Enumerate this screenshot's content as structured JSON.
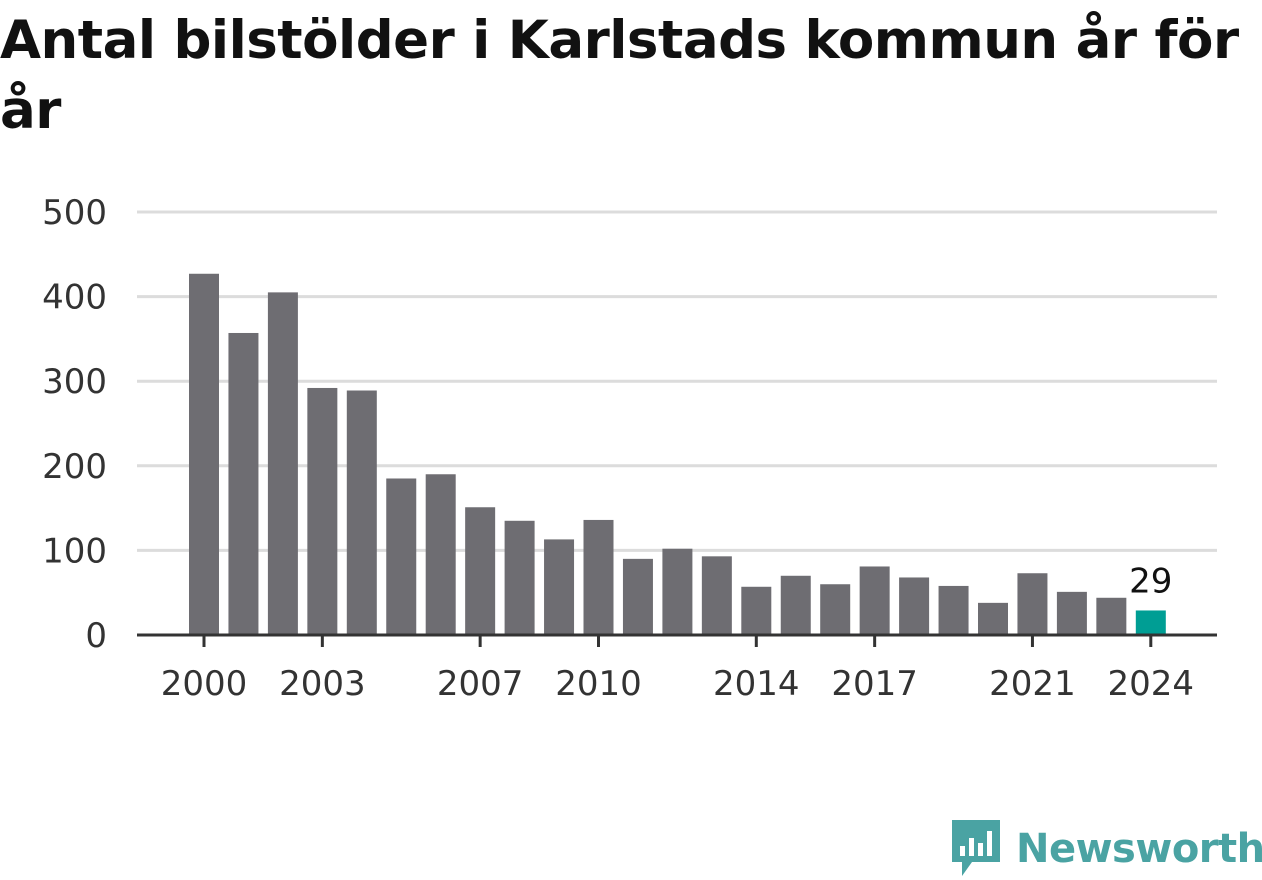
{
  "title": "Antal bilstölder i Karlstads kommun år för år",
  "brand": {
    "name": "Newsworthy",
    "logo_icon": "newsworthy-bar-chart-logo-icon",
    "color": "#4aa3a3"
  },
  "colors": {
    "bar": "#6e6d72",
    "highlight": "#009e94",
    "grid": "#dcdcdc",
    "axis": "#333333"
  },
  "chart_data": {
    "type": "bar",
    "categories": [
      "2000",
      "2001",
      "2002",
      "2003",
      "2004",
      "2005",
      "2006",
      "2007",
      "2008",
      "2009",
      "2010",
      "2011",
      "2012",
      "2013",
      "2014",
      "2015",
      "2016",
      "2017",
      "2018",
      "2019",
      "2020",
      "2021",
      "2022",
      "2023",
      "2024"
    ],
    "values": [
      427,
      357,
      405,
      292,
      289,
      185,
      190,
      151,
      135,
      113,
      136,
      90,
      102,
      93,
      57,
      70,
      60,
      81,
      68,
      58,
      38,
      73,
      51,
      44,
      29
    ],
    "x_tick_labels": [
      "2000",
      "2003",
      "2007",
      "2010",
      "2014",
      "2017",
      "2021",
      "2024"
    ],
    "y_ticks": [
      0,
      100,
      200,
      300,
      400,
      500
    ],
    "ylim": [
      0,
      500
    ],
    "highlight_category": "2024",
    "value_labels": [
      {
        "category": "2024",
        "text": "29"
      }
    ],
    "grid": true,
    "xlabel": "",
    "ylabel": ""
  }
}
